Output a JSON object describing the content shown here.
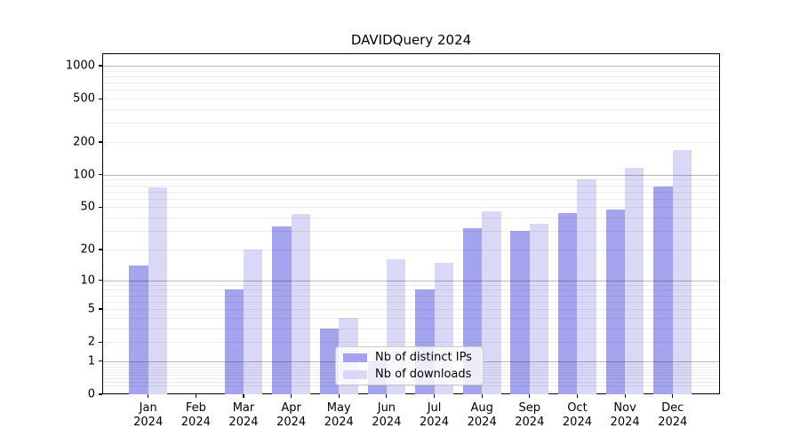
{
  "title": "DAVIDQuery 2024",
  "chart_data": {
    "type": "bar",
    "title": "DAVIDQuery 2024",
    "categories": [
      {
        "month": "Jan",
        "year": "2024"
      },
      {
        "month": "Feb",
        "year": "2024"
      },
      {
        "month": "Mar",
        "year": "2024"
      },
      {
        "month": "Apr",
        "year": "2024"
      },
      {
        "month": "May",
        "year": "2024"
      },
      {
        "month": "Jun",
        "year": "2024"
      },
      {
        "month": "Jul",
        "year": "2024"
      },
      {
        "month": "Aug",
        "year": "2024"
      },
      {
        "month": "Sep",
        "year": "2024"
      },
      {
        "month": "Oct",
        "year": "2024"
      },
      {
        "month": "Nov",
        "year": "2024"
      },
      {
        "month": "Dec",
        "year": "2024"
      }
    ],
    "series": [
      {
        "name": "Nb of distinct IPs",
        "color": "#a4a4ee",
        "values": [
          14,
          0,
          8,
          33,
          3,
          1,
          8,
          32,
          30,
          44,
          48,
          78
        ]
      },
      {
        "name": "Nb of downloads",
        "color": "#d9d9f7",
        "values": [
          77,
          0,
          20,
          43,
          4,
          16,
          15,
          46,
          35,
          90,
          115,
          170
        ]
      }
    ],
    "xlabel": "",
    "ylabel": "",
    "y_scale": "log1p",
    "ylim": [
      0,
      1300
    ],
    "y_ticks": [
      0,
      1,
      2,
      5,
      10,
      20,
      50,
      100,
      200,
      500,
      1000
    ],
    "y_tick_labels": [
      "0",
      "1",
      "2",
      "5",
      "10",
      "20",
      "50",
      "100",
      "200",
      "500",
      "1000"
    ],
    "y_major_gridlines": [
      1,
      10,
      100,
      1000
    ],
    "grid": true,
    "legend_position": "lower center"
  },
  "legend": {
    "items": [
      "Nb of distinct IPs",
      "Nb of downloads"
    ]
  }
}
